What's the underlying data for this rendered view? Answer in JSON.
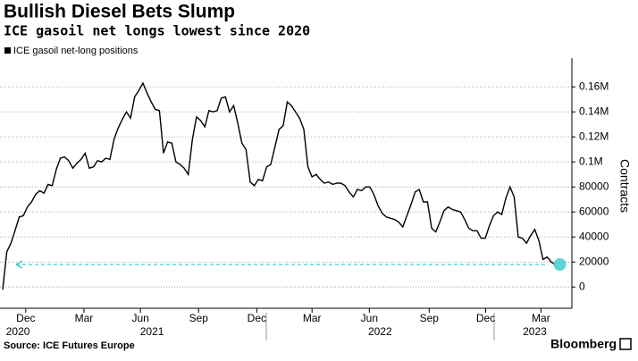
{
  "chart_data": {
    "type": "line",
    "title": "Bullish Diesel Bets Slump",
    "subtitle": "ICE gasoil net longs lowest since 2020",
    "y_label": "Contracts",
    "source": "Source: ICE Futures Europe",
    "brand": "Bloomberg",
    "grid": true,
    "series": [
      {
        "name": "ICE gasoil net-long positions",
        "color": "#000000",
        "values": [
          -2000,
          28000,
          35000,
          45000,
          56000,
          57000,
          64000,
          68000,
          74000,
          77000,
          75000,
          82000,
          81000,
          94000,
          103000,
          104000,
          101000,
          95000,
          99000,
          102000,
          107000,
          95000,
          96000,
          101000,
          100000,
          103000,
          102000,
          118000,
          127000,
          134000,
          140000,
          135000,
          152000,
          157000,
          163000,
          155000,
          148000,
          142000,
          141000,
          107000,
          116000,
          115000,
          100000,
          98000,
          95000,
          90000,
          118000,
          136000,
          133000,
          128000,
          141000,
          140000,
          141000,
          151000,
          152000,
          140000,
          145000,
          131000,
          115000,
          110000,
          84000,
          81000,
          86000,
          85000,
          96000,
          98000,
          112000,
          126000,
          129000,
          148000,
          145000,
          140000,
          135000,
          126000,
          96000,
          88000,
          90000,
          86000,
          83000,
          84000,
          82000,
          83000,
          83000,
          81000,
          76000,
          72000,
          78000,
          77000,
          80000,
          80000,
          74000,
          65000,
          59000,
          56000,
          55000,
          54000,
          52000,
          48000,
          57000,
          66000,
          76000,
          78000,
          68000,
          68000,
          47000,
          44000,
          52000,
          61000,
          64000,
          62000,
          61000,
          60000,
          54000,
          47000,
          45000,
          45000,
          39000,
          39000,
          49000,
          57000,
          60000,
          58000,
          71000,
          80000,
          72000,
          40000,
          39000,
          35000,
          41000,
          46000,
          37000,
          22000,
          24000,
          20000,
          18000
        ]
      }
    ],
    "highlight_color": "#3ecfcf",
    "xlim": [
      0,
      138
    ],
    "xticks": [
      {
        "value": 5.6,
        "label": "Dec"
      },
      {
        "value": 19.7,
        "label": "Mar"
      },
      {
        "value": 33.4,
        "label": "Jun"
      },
      {
        "value": 47.5,
        "label": "Sep"
      },
      {
        "value": 61.6,
        "label": "Dec"
      },
      {
        "value": 75.0,
        "label": "Mar"
      },
      {
        "value": 88.9,
        "label": "Jun"
      },
      {
        "value": 103.4,
        "label": "Sep"
      },
      {
        "value": 117.1,
        "label": "Dec"
      },
      {
        "value": 130.5,
        "label": "Mar"
      }
    ],
    "year_labels": [
      {
        "value": 3.7,
        "label": "2020"
      },
      {
        "value": 36.2,
        "label": "2021"
      },
      {
        "value": 91.5,
        "label": "2022"
      },
      {
        "value": 129.0,
        "label": "2023"
      }
    ],
    "ylim": [
      -17000,
      183000
    ],
    "yticks": [
      0,
      20000,
      40000,
      60000,
      80000,
      {
        "value": 100000,
        "label": "0.1M"
      },
      {
        "value": 120000,
        "label": "0.12M"
      },
      {
        "value": 140000,
        "label": "0.14M"
      },
      {
        "value": 160000,
        "label": "0.16M"
      }
    ]
  }
}
